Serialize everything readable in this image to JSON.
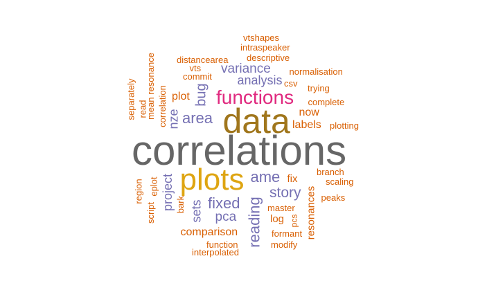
{
  "palette": {
    "gray": "#666666",
    "gold": "#DEA512",
    "brown": "#A0761C",
    "pink": "#E0297F",
    "purple": "#7570B3",
    "orange": "#D95F02"
  },
  "words": [
    {
      "text": "correlations",
      "color": "gray",
      "orientation": "horizontal"
    },
    {
      "text": "data",
      "color": "brown",
      "orientation": "horizontal"
    },
    {
      "text": "plots",
      "color": "gold",
      "orientation": "horizontal"
    },
    {
      "text": "functions",
      "color": "pink",
      "orientation": "horizontal"
    },
    {
      "text": "area",
      "color": "purple",
      "orientation": "horizontal"
    },
    {
      "text": "fixed",
      "color": "purple",
      "orientation": "horizontal"
    },
    {
      "text": "story",
      "color": "purple",
      "orientation": "horizontal"
    },
    {
      "text": "ame",
      "color": "purple",
      "orientation": "horizontal"
    },
    {
      "text": "variance",
      "color": "purple",
      "orientation": "horizontal"
    },
    {
      "text": "analysis",
      "color": "purple",
      "orientation": "horizontal"
    },
    {
      "text": "pca",
      "color": "purple",
      "orientation": "horizontal"
    },
    {
      "text": "reading",
      "color": "purple",
      "orientation": "vertical"
    },
    {
      "text": "project",
      "color": "purple",
      "orientation": "vertical"
    },
    {
      "text": "sets",
      "color": "purple",
      "orientation": "vertical"
    },
    {
      "text": "bug",
      "color": "purple",
      "orientation": "vertical"
    },
    {
      "text": "nze",
      "color": "purple",
      "orientation": "vertical"
    },
    {
      "text": "now",
      "color": "orange",
      "orientation": "horizontal"
    },
    {
      "text": "labels",
      "color": "orange",
      "orientation": "horizontal"
    },
    {
      "text": "plot",
      "color": "orange",
      "orientation": "horizontal"
    },
    {
      "text": "comparison",
      "color": "orange",
      "orientation": "horizontal"
    },
    {
      "text": "log",
      "color": "orange",
      "orientation": "horizontal"
    },
    {
      "text": "fix",
      "color": "orange",
      "orientation": "horizontal"
    },
    {
      "text": "resonances",
      "color": "orange",
      "orientation": "vertical"
    },
    {
      "text": "vtshapes",
      "color": "orange",
      "orientation": "horizontal"
    },
    {
      "text": "intraspeaker",
      "color": "orange",
      "orientation": "horizontal"
    },
    {
      "text": "descriptive",
      "color": "orange",
      "orientation": "horizontal"
    },
    {
      "text": "distancearea",
      "color": "orange",
      "orientation": "horizontal"
    },
    {
      "text": "vts",
      "color": "orange",
      "orientation": "horizontal"
    },
    {
      "text": "commit",
      "color": "orange",
      "orientation": "horizontal"
    },
    {
      "text": "normalisation",
      "color": "orange",
      "orientation": "horizontal"
    },
    {
      "text": "csv",
      "color": "orange",
      "orientation": "horizontal"
    },
    {
      "text": "trying",
      "color": "orange",
      "orientation": "horizontal"
    },
    {
      "text": "complete",
      "color": "orange",
      "orientation": "horizontal"
    },
    {
      "text": "plotting",
      "color": "orange",
      "orientation": "horizontal"
    },
    {
      "text": "branch",
      "color": "orange",
      "orientation": "horizontal"
    },
    {
      "text": "scaling",
      "color": "orange",
      "orientation": "horizontal"
    },
    {
      "text": "peaks",
      "color": "orange",
      "orientation": "horizontal"
    },
    {
      "text": "master",
      "color": "orange",
      "orientation": "horizontal"
    },
    {
      "text": "formant",
      "color": "orange",
      "orientation": "horizontal"
    },
    {
      "text": "modify",
      "color": "orange",
      "orientation": "horizontal"
    },
    {
      "text": "function",
      "color": "orange",
      "orientation": "horizontal"
    },
    {
      "text": "interpolated",
      "color": "orange",
      "orientation": "horizontal"
    },
    {
      "text": "pcs",
      "color": "orange",
      "orientation": "vertical"
    },
    {
      "text": "separately",
      "color": "orange",
      "orientation": "vertical"
    },
    {
      "text": "read",
      "color": "orange",
      "orientation": "vertical"
    },
    {
      "text": "mean resonance",
      "color": "orange",
      "orientation": "vertical"
    },
    {
      "text": "correlation",
      "color": "orange",
      "orientation": "vertical"
    },
    {
      "text": "region",
      "color": "orange",
      "orientation": "vertical"
    },
    {
      "text": "script",
      "color": "orange",
      "orientation": "vertical"
    },
    {
      "text": "eplot",
      "color": "orange",
      "orientation": "vertical"
    },
    {
      "text": "bark",
      "color": "orange",
      "orientation": "vertical"
    }
  ]
}
